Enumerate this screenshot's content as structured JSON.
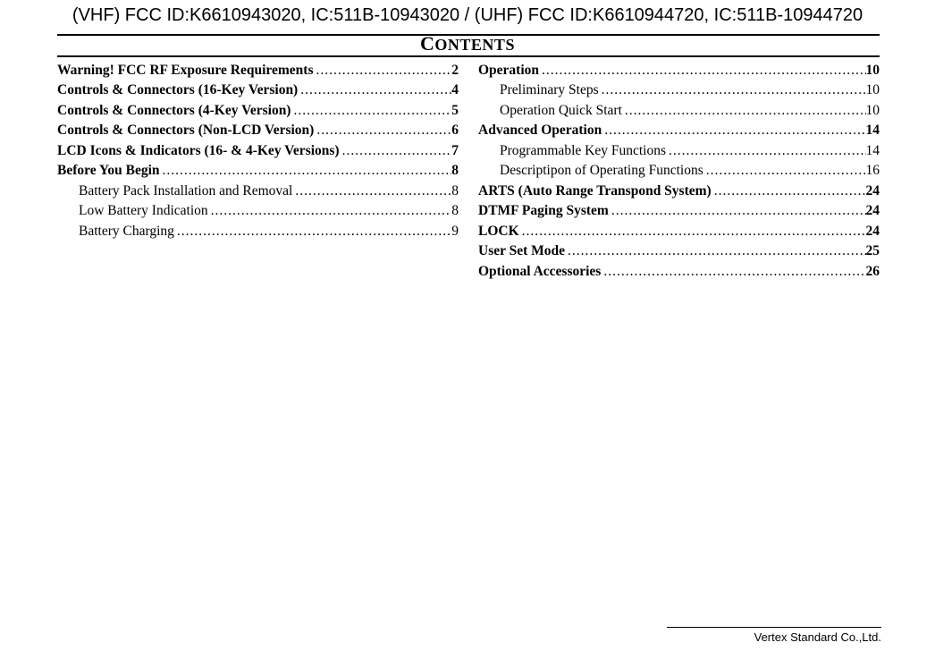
{
  "header": "(VHF) FCC ID:K6610943020, IC:511B-10943020 / (UHF) FCC ID:K6610944720, IC:511B-10944720",
  "title": "Contents",
  "footer": "Vertex Standard Co.,Ltd.",
  "dots": "................................................................................................................................................................",
  "left": [
    {
      "label": "Warning! FCC RF Exposure Requirements",
      "page": "2",
      "bold": true,
      "indent": false
    },
    {
      "label": "Controls & Connectors (16-Key Version)",
      "page": "4",
      "bold": true,
      "indent": false
    },
    {
      "label": "Controls & Connectors (4-Key Version)",
      "page": "5",
      "bold": true,
      "indent": false
    },
    {
      "label": "Controls & Connectors (Non-LCD Version)",
      "page": "6",
      "bold": true,
      "indent": false
    },
    {
      "label": "LCD Icons & Indicators (16- & 4-Key Versions)",
      "page": "7",
      "bold": true,
      "indent": false
    },
    {
      "label": "Before You Begin",
      "page": "8",
      "bold": true,
      "indent": false
    },
    {
      "label": "Battery Pack Installation and Removal",
      "page": "8",
      "bold": false,
      "indent": true
    },
    {
      "label": "Low Battery Indication",
      "page": "8",
      "bold": false,
      "indent": true
    },
    {
      "label": "Battery Charging",
      "page": "9",
      "bold": false,
      "indent": true
    }
  ],
  "right": [
    {
      "label": "Operation",
      "page": "10",
      "bold": true,
      "indent": false
    },
    {
      "label": "Preliminary Steps",
      "page": "10",
      "bold": false,
      "indent": true
    },
    {
      "label": "Operation Quick Start",
      "page": "10",
      "bold": false,
      "indent": true
    },
    {
      "label": "Advanced Operation",
      "page": "14",
      "bold": true,
      "indent": false
    },
    {
      "label": "Programmable Key Functions",
      "page": "14",
      "bold": false,
      "indent": true
    },
    {
      "label": "Descriptipon of Operating Functions",
      "page": "16",
      "bold": false,
      "indent": true
    },
    {
      "label": "ARTS (Auto Range Transpond System)",
      "page": "24",
      "bold": true,
      "indent": false
    },
    {
      "label": "DTMF Paging System",
      "page": "24",
      "bold": true,
      "indent": false
    },
    {
      "label": "LOCK",
      "page": "24",
      "bold": true,
      "indent": false
    },
    {
      "label": "User Set Mode",
      "page": "25",
      "bold": true,
      "indent": false
    },
    {
      "label": "Optional Accessories",
      "page": "26",
      "bold": true,
      "indent": false
    }
  ]
}
